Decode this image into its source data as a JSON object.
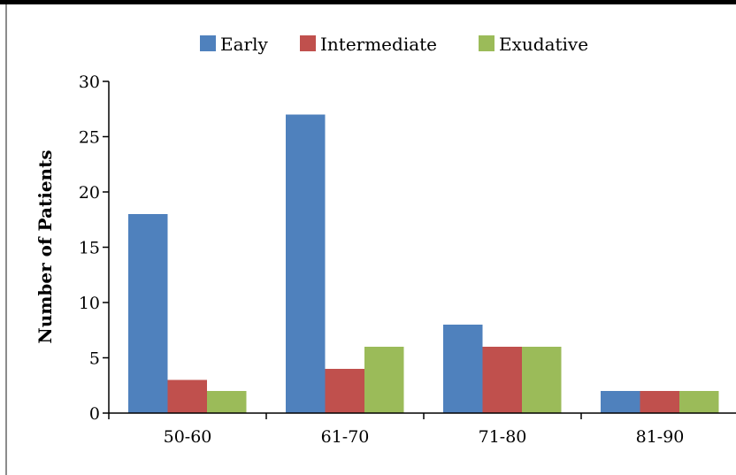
{
  "chart_data": {
    "type": "bar",
    "categories": [
      "50-60",
      "61-70",
      "71-80",
      "81-90"
    ],
    "series": [
      {
        "name": "Early",
        "color": "#4f81bd",
        "values": [
          18,
          27,
          8,
          2
        ]
      },
      {
        "name": "Intermediate",
        "color": "#c0504d",
        "values": [
          3,
          4,
          6,
          2
        ]
      },
      {
        "name": "Exudative",
        "color": "#9bbb59",
        "values": [
          2,
          6,
          6,
          2
        ]
      }
    ],
    "ylabel": "Number of Patients",
    "ylim": [
      0,
      30
    ],
    "yticks": [
      "0",
      "5",
      "10",
      "15",
      "20",
      "25",
      "30"
    ],
    "legend_position": "top",
    "grid": false
  }
}
